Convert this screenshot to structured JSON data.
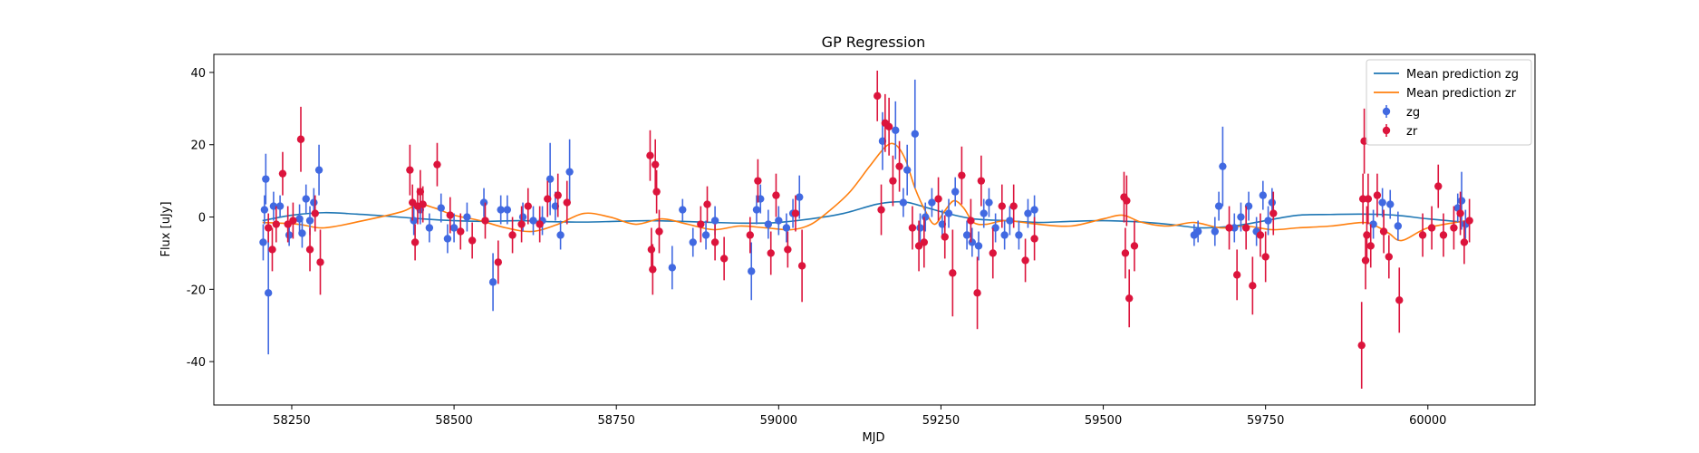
{
  "chart_data": {
    "type": "scatter",
    "title": "GP Regression",
    "xlabel": "MJD",
    "ylabel": "Flux [uJy]",
    "xlim": [
      58130,
      60165
    ],
    "ylim": [
      -52,
      45
    ],
    "xticks": [
      58250,
      58500,
      58750,
      59000,
      59250,
      59500,
      59750,
      60000
    ],
    "yticks": [
      -40,
      -20,
      0,
      20,
      40
    ],
    "grid": false,
    "legend_position": "top-right",
    "legend": [
      {
        "label": "Mean prediction zg",
        "kind": "line",
        "color": "#1f77b4"
      },
      {
        "label": "Mean prediction zr",
        "kind": "line",
        "color": "#ff7f0e"
      },
      {
        "label": "zg",
        "kind": "errorbar",
        "color": "#4169e1"
      },
      {
        "label": "zr",
        "kind": "errorbar",
        "color": "#dc143c"
      }
    ],
    "lines": [
      {
        "name": "Mean prediction zg",
        "color": "#1f77b4",
        "x": [
          58205,
          58250,
          58300,
          58350,
          58400,
          58450,
          58500,
          58550,
          58600,
          58650,
          58700,
          58750,
          58800,
          58850,
          58900,
          58950,
          59000,
          59050,
          59100,
          59150,
          59180,
          59200,
          59230,
          59260,
          59300,
          59350,
          59400,
          59450,
          59500,
          59550,
          59600,
          59650,
          59700,
          59750,
          59800,
          59850,
          59900,
          59950,
          60000,
          60060
        ],
        "y": [
          -1,
          0.5,
          1.2,
          0.8,
          0.2,
          -0.5,
          -1.0,
          -1.2,
          -1.0,
          -1.3,
          -1.4,
          -1.2,
          -1.0,
          -1.2,
          -1.5,
          -1.7,
          -1.5,
          -0.5,
          1.0,
          3.5,
          4.2,
          4.0,
          2.5,
          1.0,
          -0.5,
          -1.0,
          -1.5,
          -1.2,
          -1.0,
          -1.3,
          -2.0,
          -3.0,
          -2.5,
          -1.0,
          0.5,
          0.7,
          0.8,
          0.5,
          -0.5,
          -1.5
        ]
      },
      {
        "name": "Mean prediction zr",
        "color": "#ff7f0e",
        "x": [
          58205,
          58260,
          58300,
          58360,
          58420,
          58445,
          58470,
          58500,
          58540,
          58580,
          58620,
          58660,
          58700,
          58740,
          58780,
          58820,
          58860,
          58900,
          58940,
          58980,
          59020,
          59050,
          59080,
          59110,
          59140,
          59165,
          59180,
          59195,
          59210,
          59225,
          59240,
          59255,
          59270,
          59285,
          59300,
          59320,
          59350,
          59400,
          59450,
          59500,
          59530,
          59560,
          59600,
          59640,
          59680,
          59720,
          59760,
          59800,
          59850,
          59900,
          59920,
          59940,
          59960,
          60000,
          60060
        ],
        "y": [
          -1.5,
          -2.0,
          -3.0,
          -1.0,
          1.5,
          3.5,
          2.5,
          0.5,
          -1.0,
          -3.0,
          -4.0,
          -2.0,
          1.0,
          0.0,
          -2.0,
          -0.5,
          -2.0,
          -3.5,
          -2.5,
          -3.0,
          -3.5,
          -2.0,
          2.0,
          7.0,
          14.0,
          19.5,
          20.0,
          16.0,
          8.0,
          2.0,
          -2.0,
          1.5,
          4.5,
          2.5,
          -1.5,
          -2.0,
          -1.0,
          -2.0,
          -2.5,
          -0.5,
          0.5,
          -1.5,
          -2.5,
          -1.5,
          -3.0,
          -2.5,
          -3.5,
          -3.0,
          -2.5,
          -1.5,
          -2.5,
          -4.5,
          -6.5,
          -3.0,
          -1.0
        ]
      }
    ],
    "series": [
      {
        "name": "zg",
        "color": "#4169e1",
        "points": [
          [
            58206,
            -7,
            5
          ],
          [
            58208,
            2,
            4
          ],
          [
            58210,
            10.5,
            7
          ],
          [
            58214,
            -21,
            17
          ],
          [
            58222,
            3,
            4
          ],
          [
            58232,
            3,
            3
          ],
          [
            58246,
            -5,
            3
          ],
          [
            58262,
            -0.5,
            4
          ],
          [
            58266,
            -4.5,
            4
          ],
          [
            58272,
            5,
            4
          ],
          [
            58278,
            -1,
            4
          ],
          [
            58284,
            4,
            4
          ],
          [
            58292,
            13,
            7
          ],
          [
            58438,
            -1,
            4
          ],
          [
            58448,
            2,
            4
          ],
          [
            58462,
            -3,
            4
          ],
          [
            58480,
            2.5,
            4
          ],
          [
            58490,
            -6,
            4
          ],
          [
            58500,
            -3,
            4
          ],
          [
            58520,
            0,
            4
          ],
          [
            58546,
            4,
            4
          ],
          [
            58560,
            -18,
            8
          ],
          [
            58572,
            2,
            4
          ],
          [
            58582,
            2,
            4
          ],
          [
            58606,
            0,
            4
          ],
          [
            58622,
            -1,
            4
          ],
          [
            58636,
            -1,
            4
          ],
          [
            58648,
            10.5,
            10
          ],
          [
            58656,
            3,
            4
          ],
          [
            58664,
            -5,
            4
          ],
          [
            58678,
            12.5,
            9
          ],
          [
            58852,
            2,
            3
          ],
          [
            58836,
            -14,
            6
          ],
          [
            58868,
            -7,
            4
          ],
          [
            58888,
            -5,
            4
          ],
          [
            58902,
            -1,
            4
          ],
          [
            58958,
            -15,
            8
          ],
          [
            58966,
            2,
            4
          ],
          [
            58972,
            5,
            4
          ],
          [
            58984,
            -2,
            4
          ],
          [
            59000,
            -1,
            4
          ],
          [
            59012,
            -3,
            4
          ],
          [
            59022,
            1,
            4
          ],
          [
            59032,
            5.5,
            6
          ],
          [
            59160,
            21,
            8
          ],
          [
            59180,
            24,
            8
          ],
          [
            59192,
            4,
            4
          ],
          [
            59198,
            13,
            7
          ],
          [
            59210,
            23,
            15
          ],
          [
            59218,
            -3,
            4
          ],
          [
            59226,
            0,
            4
          ],
          [
            59236,
            4,
            4
          ],
          [
            59252,
            -2,
            4
          ],
          [
            59262,
            1,
            4
          ],
          [
            59272,
            7,
            4
          ],
          [
            59290,
            -5,
            4
          ],
          [
            59298,
            -7,
            4
          ],
          [
            59308,
            -8,
            4
          ],
          [
            59316,
            1,
            4
          ],
          [
            59324,
            4,
            4
          ],
          [
            59334,
            -3,
            4
          ],
          [
            59348,
            -5,
            4
          ],
          [
            59356,
            -1,
            4
          ],
          [
            59370,
            -5,
            4
          ],
          [
            59384,
            1,
            4
          ],
          [
            59394,
            2,
            4
          ],
          [
            59640,
            -5,
            3
          ],
          [
            59646,
            -4,
            3
          ],
          [
            59672,
            -4,
            4
          ],
          [
            59678,
            3,
            4
          ],
          [
            59684,
            14,
            11
          ],
          [
            59702,
            -3,
            4
          ],
          [
            59712,
            0,
            4
          ],
          [
            59724,
            3,
            4
          ],
          [
            59736,
            -4,
            4
          ],
          [
            59746,
            6,
            4
          ],
          [
            59754,
            -1,
            4
          ],
          [
            59760,
            4,
            4
          ],
          [
            59916,
            -2,
            4
          ],
          [
            59930,
            4,
            4
          ],
          [
            59942,
            3.5,
            4
          ],
          [
            59954,
            -2.5,
            4
          ],
          [
            60046,
            2.5,
            4
          ],
          [
            60052,
            4.5,
            8
          ],
          [
            60058,
            -2,
            4
          ]
        ]
      },
      {
        "name": "zr",
        "color": "#dc143c",
        "points": [
          [
            58214,
            -3,
            4
          ],
          [
            58220,
            -9,
            6
          ],
          [
            58226,
            -2,
            5
          ],
          [
            58236,
            12,
            6
          ],
          [
            58244,
            -2,
            5
          ],
          [
            58252,
            -1,
            5
          ],
          [
            58264,
            21.5,
            9
          ],
          [
            58278,
            -9,
            6
          ],
          [
            58286,
            1,
            5
          ],
          [
            58294,
            -12.5,
            9
          ],
          [
            58432,
            13,
            7
          ],
          [
            58436,
            4,
            5
          ],
          [
            58440,
            -7,
            5
          ],
          [
            58444,
            3,
            5
          ],
          [
            58448,
            7,
            6
          ],
          [
            58452,
            3.5,
            5
          ],
          [
            58474,
            14.5,
            6
          ],
          [
            58494,
            0.5,
            5
          ],
          [
            58510,
            -4,
            5
          ],
          [
            58528,
            -6.5,
            5
          ],
          [
            58548,
            -1,
            5
          ],
          [
            58568,
            -12.5,
            6
          ],
          [
            58590,
            -5,
            5
          ],
          [
            58604,
            -2,
            5
          ],
          [
            58614,
            3,
            5
          ],
          [
            58632,
            -2,
            5
          ],
          [
            58644,
            5,
            5
          ],
          [
            58660,
            6,
            6
          ],
          [
            58674,
            4,
            6
          ],
          [
            58802,
            17,
            7
          ],
          [
            58804,
            -9,
            6
          ],
          [
            58806,
            -14.5,
            7
          ],
          [
            58810,
            14.5,
            7
          ],
          [
            58812,
            7,
            6
          ],
          [
            58816,
            -4,
            6
          ],
          [
            58880,
            -2,
            5
          ],
          [
            58890,
            3.5,
            5
          ],
          [
            58902,
            -7,
            5
          ],
          [
            58916,
            -11.5,
            6
          ],
          [
            58956,
            -5,
            5
          ],
          [
            58968,
            10,
            6
          ],
          [
            58988,
            -10,
            6
          ],
          [
            58996,
            6,
            6
          ],
          [
            59014,
            -9,
            5
          ],
          [
            59026,
            1,
            5
          ],
          [
            59036,
            -13.5,
            10
          ],
          [
            59152,
            33.5,
            7
          ],
          [
            59158,
            2,
            7
          ],
          [
            59164,
            26,
            8
          ],
          [
            59170,
            25,
            8
          ],
          [
            59176,
            10,
            7
          ],
          [
            59186,
            14,
            7
          ],
          [
            59206,
            -3,
            6
          ],
          [
            59216,
            -8,
            7
          ],
          [
            59224,
            -7,
            7
          ],
          [
            59246,
            5,
            6
          ],
          [
            59256,
            -5.5,
            6
          ],
          [
            59268,
            -15.5,
            12
          ],
          [
            59282,
            11.5,
            8
          ],
          [
            59296,
            -1,
            6
          ],
          [
            59306,
            -21,
            10
          ],
          [
            59312,
            10,
            7
          ],
          [
            59330,
            -10,
            7
          ],
          [
            59344,
            3,
            6
          ],
          [
            59362,
            3,
            6
          ],
          [
            59380,
            -12,
            6
          ],
          [
            59394,
            -6,
            6
          ],
          [
            59532,
            5.5,
            7
          ],
          [
            59534,
            -10,
            7
          ],
          [
            59536,
            4.5,
            7
          ],
          [
            59540,
            -22.5,
            8
          ],
          [
            59548,
            -8,
            7
          ],
          [
            59694,
            -3,
            6
          ],
          [
            59706,
            -16,
            7
          ],
          [
            59720,
            -3,
            6
          ],
          [
            59730,
            -19,
            8
          ],
          [
            59742,
            -5,
            6
          ],
          [
            59750,
            -11,
            7
          ],
          [
            59762,
            1,
            6
          ],
          [
            59898,
            -35.5,
            12
          ],
          [
            59900,
            5,
            7
          ],
          [
            59902,
            21,
            9
          ],
          [
            59904,
            -12,
            8
          ],
          [
            59906,
            -5,
            8
          ],
          [
            59908,
            5,
            7
          ],
          [
            59912,
            -8,
            6
          ],
          [
            59922,
            6,
            6
          ],
          [
            59932,
            -4,
            6
          ],
          [
            59940,
            -11,
            6
          ],
          [
            59956,
            -23,
            9
          ],
          [
            59992,
            -5,
            6
          ],
          [
            60006,
            -3,
            6
          ],
          [
            60016,
            8.5,
            6
          ],
          [
            60024,
            -5,
            6
          ],
          [
            60040,
            -3,
            6
          ],
          [
            60050,
            1,
            6
          ],
          [
            60056,
            -7,
            6
          ],
          [
            60064,
            -1,
            6
          ]
        ]
      }
    ]
  }
}
